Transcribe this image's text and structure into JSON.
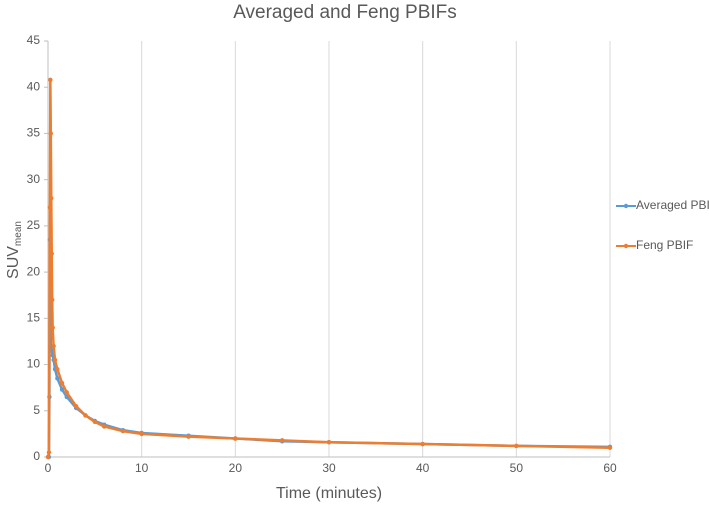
{
  "chart_data": {
    "type": "line",
    "title": "Averaged and Feng PBIFs",
    "xlabel": "Time (minutes)",
    "ylabel": {
      "text": "SUV",
      "subscript": "mean"
    },
    "xlim": [
      0,
      60
    ],
    "xticks": [
      0,
      10,
      20,
      30,
      40,
      50,
      60
    ],
    "ylim": [
      0,
      45
    ],
    "yticks": [
      0,
      5,
      10,
      15,
      20,
      25,
      30,
      35,
      40,
      45
    ],
    "grid": "x",
    "legend": "right",
    "series": [
      {
        "name": "Averaged PBIF",
        "color": "#5b9bd5",
        "x": [
          0,
          0.1,
          0.15,
          0.2,
          0.3,
          0.4,
          0.5,
          0.6,
          0.75,
          1,
          1.5,
          2,
          3,
          4,
          5,
          6,
          8,
          10,
          15,
          20,
          25,
          30,
          40,
          50,
          60
        ],
        "values": [
          0,
          0,
          6.5,
          23.5,
          12,
          11.5,
          11,
          10.5,
          9.5,
          8.5,
          7.3,
          6.5,
          5.3,
          4.5,
          3.9,
          3.5,
          2.9,
          2.6,
          2.3,
          2.0,
          1.7,
          1.6,
          1.4,
          1.2,
          1.1
        ]
      },
      {
        "name": "Feng PBIF",
        "color": "#ed7d31",
        "x": [
          0,
          0.1,
          0.2,
          0.25,
          0.3,
          0.35,
          0.4,
          0.45,
          0.5,
          0.6,
          0.75,
          1,
          1.5,
          2,
          3,
          4,
          5,
          6,
          8,
          10,
          15,
          20,
          25,
          30,
          40,
          50,
          60
        ],
        "values": [
          0,
          0.5,
          27,
          40.8,
          35,
          28,
          22,
          17,
          14,
          12,
          10.5,
          9.5,
          8,
          7,
          5.5,
          4.5,
          3.8,
          3.3,
          2.8,
          2.5,
          2.2,
          2.0,
          1.8,
          1.6,
          1.4,
          1.2,
          1.0
        ]
      }
    ]
  }
}
